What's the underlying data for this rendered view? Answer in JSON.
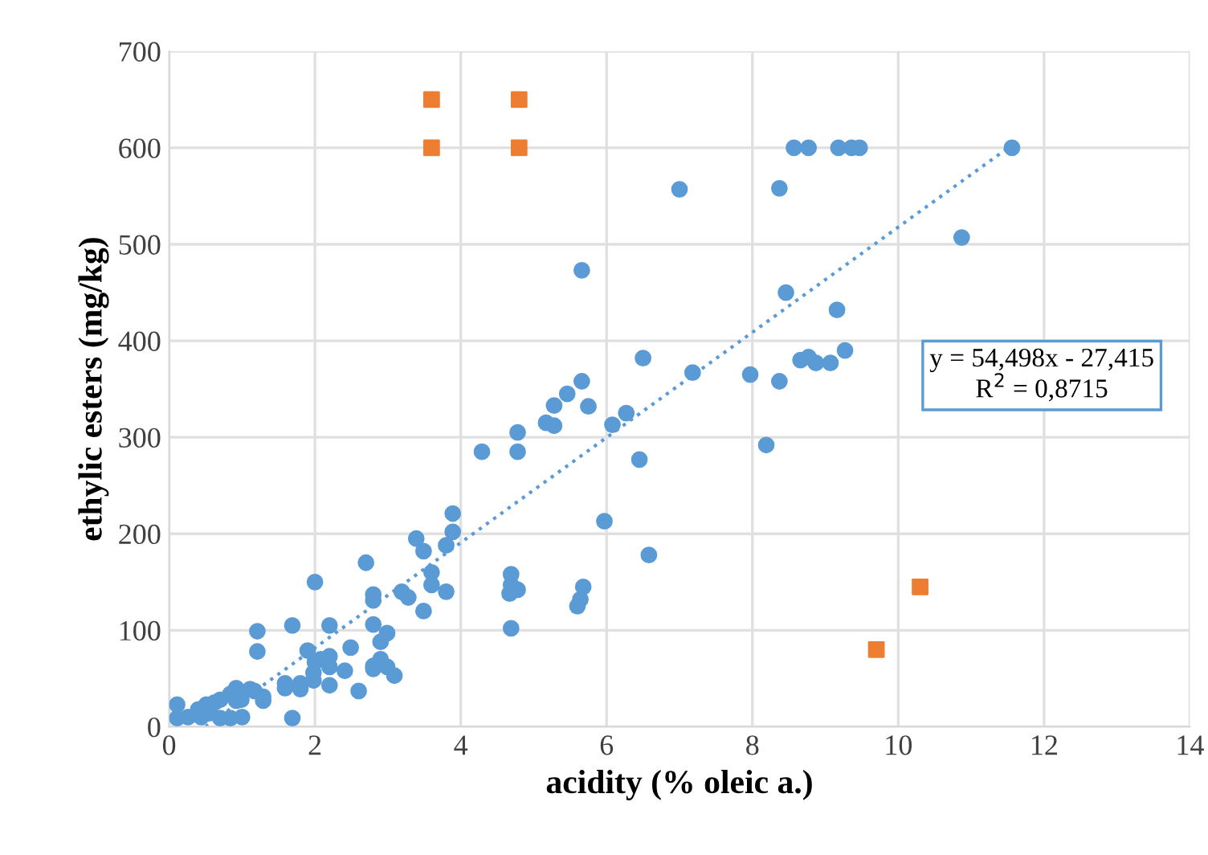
{
  "chart_data": {
    "type": "scatter",
    "xlabel": "acidity (% oleic a.)",
    "ylabel": "ethylic esters (mg/kg)",
    "xlim": [
      0,
      14
    ],
    "xticks": [
      0,
      2,
      4,
      6,
      8,
      10,
      12,
      14
    ],
    "ylim": [
      0,
      700
    ],
    "yticks": [
      0,
      100,
      200,
      300,
      400,
      500,
      600,
      700
    ],
    "grid": true,
    "annotations": [
      "y = 54,498x - 27,415\nR$^{2}$ = 0,8715"
    ],
    "series": [
      {
        "marker": "circle",
        "color": "#5b9bd5",
        "x": [
          3.89,
          3.89,
          3.39,
          3.49,
          3.8,
          2.7,
          2.0,
          3.6,
          3.6,
          3.8,
          3.19,
          3.28,
          2.8,
          2.8,
          3.49,
          1.21,
          1.21,
          1.69,
          2.2,
          2.8,
          2.99,
          2.9,
          2.49,
          1.9,
          2.2,
          2.08,
          2.0,
          1.98,
          2.2,
          1.98,
          2.2,
          2.41,
          2.8,
          2.9,
          2.8,
          2.99,
          3.09,
          2.6,
          1.8,
          1.69,
          1.59,
          1.59,
          1.8,
          1.29,
          1.29,
          1.17,
          1.11,
          0.92,
          0.99,
          0.84,
          0.92,
          0.7,
          0.62,
          0.51,
          0.4,
          0.11,
          0.26,
          0.44,
          0.55,
          0.7,
          0.84,
          1.0,
          0.11,
          4.69,
          4.69,
          4.78,
          4.67,
          4.69,
          5.64,
          5.6,
          5.68,
          4.29,
          4.78,
          4.78,
          5.17,
          5.28,
          5.28,
          5.46,
          5.66,
          5.75,
          6.08,
          6.27,
          6.45,
          5.97,
          6.5,
          6.58,
          5.66,
          7.0,
          7.18,
          7.97,
          8.37,
          8.66,
          8.77,
          8.87,
          9.07,
          9.27,
          8.19,
          8.46,
          9.16,
          8.37,
          10.87,
          8.57,
          8.77,
          9.18,
          9.36,
          9.47,
          11.56
        ],
        "values": [
          221,
          202,
          195,
          182,
          188,
          170,
          150,
          160,
          147,
          140,
          140,
          134,
          137,
          131,
          120,
          99,
          78,
          105,
          105,
          106,
          97,
          88,
          82,
          79,
          73,
          70,
          67,
          56,
          62,
          48,
          43,
          58,
          63,
          70,
          60,
          62,
          53,
          37,
          39,
          9,
          45,
          40,
          45,
          31,
          27,
          37,
          39,
          40,
          28,
          34,
          27,
          28,
          25,
          23,
          18,
          23,
          10,
          10,
          14,
          9,
          9,
          10,
          9,
          158,
          147,
          142,
          138,
          102,
          132,
          125,
          145,
          285,
          305,
          285,
          315,
          333,
          312,
          345,
          358,
          332,
          313,
          325,
          277,
          213,
          382,
          178,
          473,
          557,
          367,
          365,
          358,
          380,
          383,
          377,
          377,
          390,
          292,
          450,
          432,
          558,
          507,
          600,
          600,
          600,
          600,
          600,
          600
        ]
      },
      {
        "marker": "square",
        "color": "#ed7d31",
        "x": [
          3.6,
          3.6,
          4.8,
          4.8,
          10.3,
          9.7
        ],
        "values": [
          650,
          600,
          650,
          600,
          145,
          80
        ]
      },
      {
        "type": "line",
        "line_style": "dotted",
        "color": "#5b9bd5",
        "x": [
          0.5,
          11.6
        ],
        "values": [
          0,
          605
        ]
      }
    ]
  }
}
